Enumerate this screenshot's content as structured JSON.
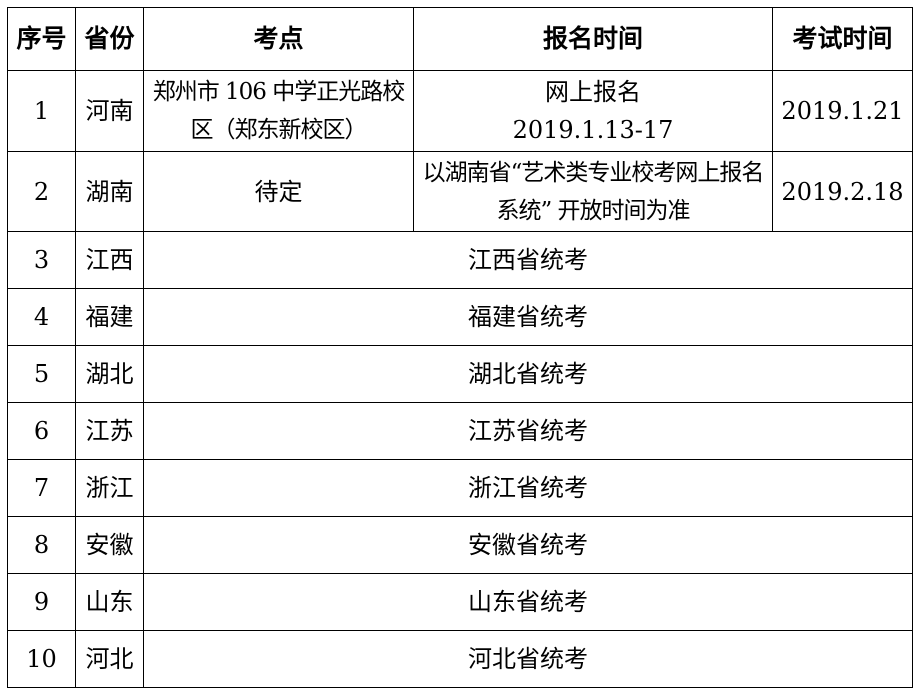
{
  "headers": [
    "序号",
    "省份",
    "考点",
    "报名时间",
    "考试时间"
  ],
  "rows_detailed": [
    {
      "no": "1",
      "province": "河南",
      "venue": "郑州市 106 中学正光路校区（郑东新校区）",
      "registration": "网上报名 2019.1.13-17",
      "registration_line1": "网上报名",
      "registration_line2": "2019.1.13-17",
      "exam_date": "2019.1.21"
    },
    {
      "no": "2",
      "province": "湖南",
      "venue": "待定",
      "registration": "以湖南省“艺术类专业校考网上报名系统” 开放时间为准",
      "exam_date": "2019.2.18"
    }
  ],
  "rows_merged": [
    {
      "no": "3",
      "province": "江西",
      "note": "江西省统考"
    },
    {
      "no": "4",
      "province": "福建",
      "note": "福建省统考"
    },
    {
      "no": "5",
      "province": "湖北",
      "note": "湖北省统考"
    },
    {
      "no": "6",
      "province": "江苏",
      "note": "江苏省统考"
    },
    {
      "no": "7",
      "province": "浙江",
      "note": "浙江省统考"
    },
    {
      "no": "8",
      "province": "安徽",
      "note": "安徽省统考"
    },
    {
      "no": "9",
      "province": "山东",
      "note": "山东省统考"
    },
    {
      "no": "10",
      "province": "河北",
      "note": "河北省统考"
    }
  ]
}
